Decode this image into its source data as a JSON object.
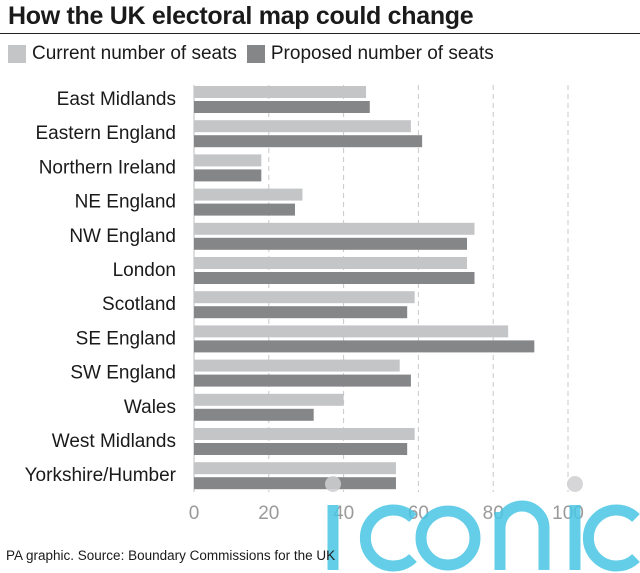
{
  "title": "How the UK electoral map could change",
  "footer": "PA graphic. Source: Boundary Commissions for the UK",
  "colors": {
    "current": "#c4c5c7",
    "proposed": "#858688",
    "grid": "#c8c8c8",
    "tick_text": "#9a9a9a",
    "watermark": "#49c6e5"
  },
  "chart_data": {
    "type": "bar",
    "orientation": "horizontal",
    "title": "How the UK electoral map could change",
    "categories": [
      "East Midlands",
      "Eastern England",
      "Northern Ireland",
      "NE England",
      "NW England",
      "London",
      "Scotland",
      "SE England",
      "SW England",
      "Wales",
      "West Midlands",
      "Yorkshire/Humber"
    ],
    "series": [
      {
        "name": "Current number of seats",
        "values": [
          46,
          58,
          18,
          29,
          75,
          73,
          59,
          84,
          55,
          40,
          59,
          54
        ]
      },
      {
        "name": "Proposed number of seats",
        "values": [
          47,
          61,
          18,
          27,
          73,
          75,
          57,
          91,
          58,
          32,
          57,
          54
        ]
      }
    ],
    "xlabel": "",
    "ylabel": "",
    "xlim": [
      0,
      100
    ],
    "xticks": [
      0,
      20,
      40,
      60,
      80,
      100
    ],
    "grid": "vertical dashed",
    "legend": "top-left"
  }
}
